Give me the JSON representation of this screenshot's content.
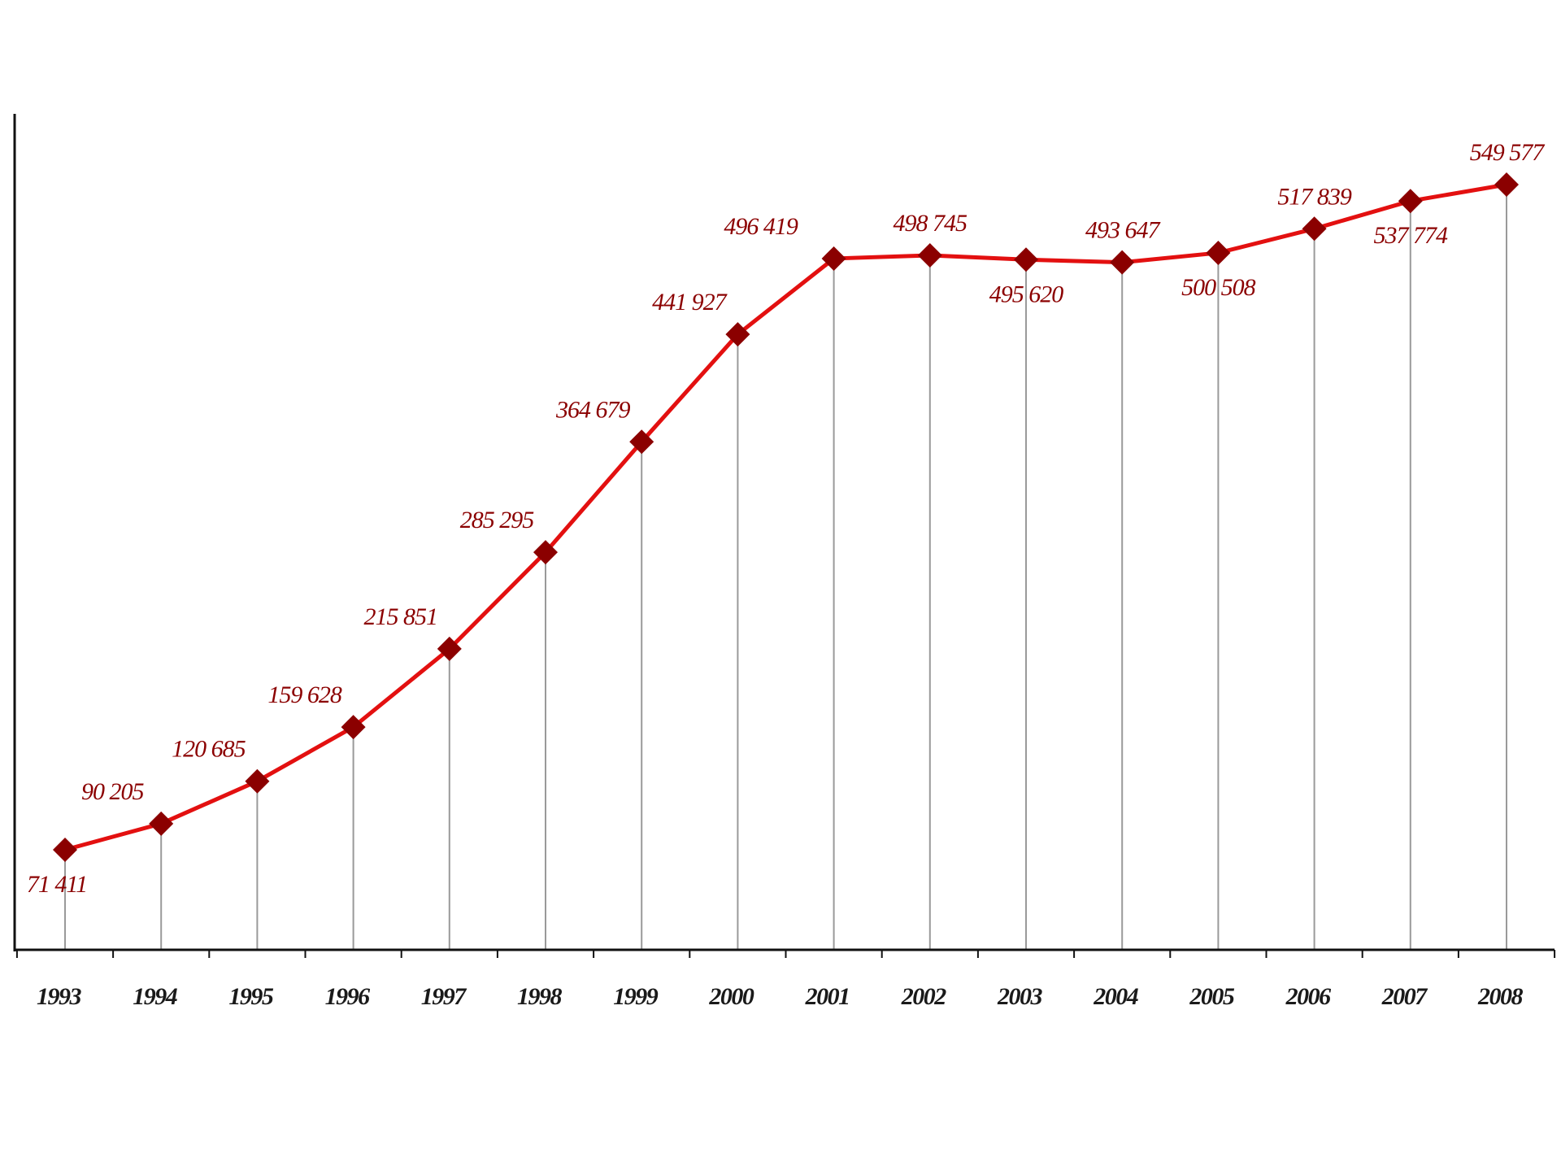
{
  "chart_data": {
    "type": "line",
    "title": "",
    "xlabel": "",
    "ylabel": "",
    "categories": [
      "1993",
      "1994",
      "1995",
      "1996",
      "1997",
      "1998",
      "1999",
      "2000",
      "2001",
      "2002",
      "2003",
      "2004",
      "2005",
      "2006",
      "2007",
      "2008"
    ],
    "values": [
      71411,
      90205,
      120685,
      159628,
      215851,
      285295,
      364679,
      441927,
      496419,
      498745,
      495620,
      493647,
      500508,
      517839,
      537774,
      549577
    ],
    "data_labels": [
      "71 411",
      "90 205",
      "120 685",
      "159 628",
      "215 851",
      "285 295",
      "364 679",
      "441 927",
      "496 419",
      "498 745",
      "495 620",
      "493 647",
      "500 508",
      "517 839",
      "537 774",
      "549 577"
    ],
    "ylim": [
      0,
      600000
    ],
    "grid": false,
    "legend": "none",
    "colors": {
      "line": "#e31010",
      "marker": "#8b0000",
      "label": "#8b0000",
      "drop_line": "#9a9a9a",
      "axis": "#111111"
    }
  }
}
